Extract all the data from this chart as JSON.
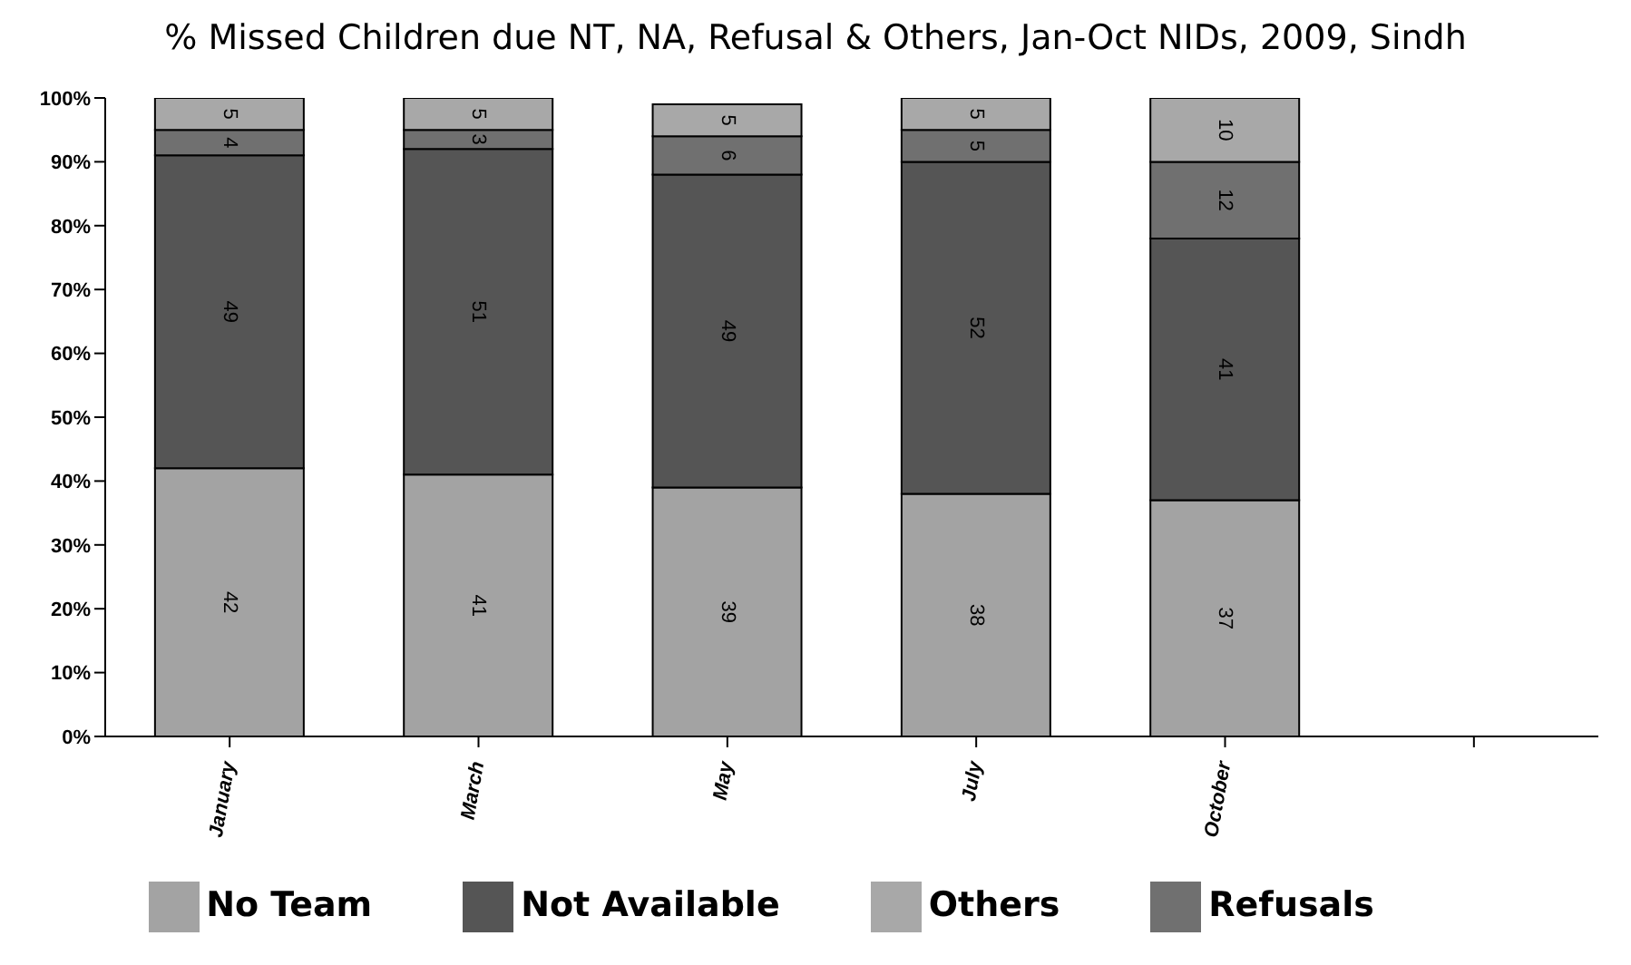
{
  "chart_data": {
    "type": "bar",
    "title": "% Missed Children due NT, NA, Refusal & Others, Jan-Oct NIDs, 2009, Sindh",
    "categories": [
      "January",
      "March",
      "May",
      "July",
      "October",
      null
    ],
    "stacked": true,
    "data_labels": true,
    "legend": "bottom",
    "grid": false,
    "ylim": [
      0,
      100
    ],
    "yticks": [
      {
        "value": 0,
        "label": "0%"
      },
      {
        "value": 10,
        "label": "10%"
      },
      {
        "value": 20,
        "label": "20%"
      },
      {
        "value": 30,
        "label": "30%"
      },
      {
        "value": 40,
        "label": "40%"
      },
      {
        "value": 50,
        "label": "50%"
      },
      {
        "value": 60,
        "label": "60%"
      },
      {
        "value": 70,
        "label": "70%"
      },
      {
        "value": 80,
        "label": "80%"
      },
      {
        "value": 90,
        "label": "90%"
      },
      {
        "value": 100,
        "label": "100%"
      }
    ],
    "series": [
      {
        "name": "No Team",
        "color": "#a3a3a3",
        "values": [
          42,
          41,
          39,
          38,
          37,
          null
        ]
      },
      {
        "name": "Not Available",
        "color": "#555555",
        "values": [
          49,
          51,
          49,
          52,
          41,
          null
        ]
      },
      {
        "name": "Refusals",
        "color": "#707070",
        "values": [
          4,
          3,
          6,
          5,
          12,
          null
        ]
      },
      {
        "name": "Others",
        "color": "#a8a8a8",
        "values": [
          5,
          5,
          5,
          5,
          10,
          null
        ]
      }
    ]
  }
}
